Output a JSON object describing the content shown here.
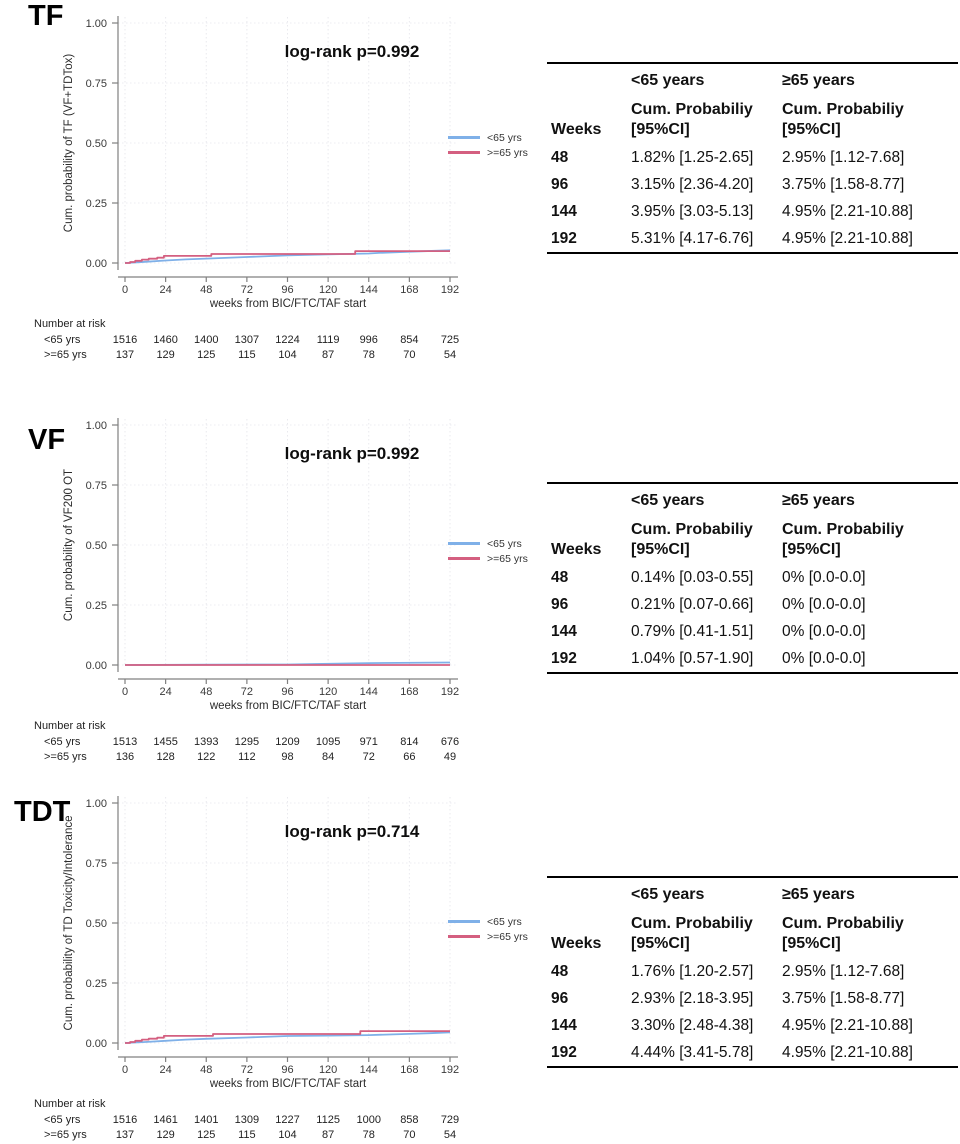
{
  "legend": {
    "items": [
      {
        "label": "<65 yrs",
        "color": "#7fb0e8"
      },
      {
        "label": ">=65 yrs",
        "color": "#d45f80"
      }
    ]
  },
  "chart_data": [
    {
      "type": "line",
      "panel_label": "TF",
      "annotation": "log-rank p=0.992",
      "ylabel": "Cum. probability of TF (VF+TDTox)",
      "xlabel": "weeks from BIC/FTC/TAF start",
      "ylim": [
        0,
        1.0
      ],
      "yticks": [
        0,
        0.25,
        0.5,
        0.75,
        1.0
      ],
      "xticks": [
        0,
        24,
        48,
        72,
        96,
        120,
        144,
        168,
        192
      ],
      "grid": true,
      "legend_position": "right",
      "series": [
        {
          "name": "<65 yrs",
          "color": "#7fb0e8",
          "step": false,
          "x": [
            0,
            6,
            12,
            24,
            36,
            48,
            72,
            96,
            120,
            144,
            150,
            168,
            192
          ],
          "y": [
            0,
            0.002,
            0.005,
            0.0105,
            0.015,
            0.0182,
            0.025,
            0.0315,
            0.036,
            0.0395,
            0.042,
            0.047,
            0.0531
          ]
        },
        {
          "name": ">=65 yrs",
          "color": "#d45f80",
          "step": true,
          "x": [
            0,
            3,
            6,
            10,
            14,
            19,
            23,
            51,
            136,
            192
          ],
          "y": [
            0,
            0.004,
            0.009,
            0.014,
            0.018,
            0.022,
            0.0295,
            0.0375,
            0.0495,
            0.0495
          ]
        }
      ],
      "number_at_risk": {
        "title": "Number at risk",
        "rows": [
          {
            "label": "<65 yrs",
            "values": [
              1516,
              1460,
              1400,
              1307,
              1224,
              1119,
              996,
              854,
              725
            ]
          },
          {
            "label": ">=65 yrs",
            "values": [
              137,
              129,
              125,
              115,
              104,
              87,
              78,
              70,
              54
            ]
          }
        ]
      },
      "table": {
        "group1_header": "<65 years",
        "group2_header": "≥65 years",
        "weeks_label": "Weeks",
        "prob_header_line1": "Cum. Probabiliy",
        "prob_header_line2": "[95%CI]",
        "rows": [
          {
            "week": "48",
            "lt65": "1.82% [1.25-2.65]",
            "ge65": "2.95% [1.12-7.68]"
          },
          {
            "week": "96",
            "lt65": "3.15% [2.36-4.20]",
            "ge65": "3.75% [1.58-8.77]"
          },
          {
            "week": "144",
            "lt65": "3.95% [3.03-5.13]",
            "ge65": "4.95% [2.21-10.88]"
          },
          {
            "week": "192",
            "lt65": "5.31% [4.17-6.76]",
            "ge65": "4.95% [2.21-10.88]"
          }
        ]
      }
    },
    {
      "type": "line",
      "panel_label": "VF",
      "annotation": "log-rank p=0.992",
      "ylabel": "Cum. probability of VF200 OT",
      "xlabel": "weeks from BIC/FTC/TAF start",
      "ylim": [
        0,
        1.0
      ],
      "yticks": [
        0,
        0.25,
        0.5,
        0.75,
        1.0
      ],
      "xticks": [
        0,
        24,
        48,
        72,
        96,
        120,
        144,
        168,
        192
      ],
      "grid": true,
      "legend_position": "right",
      "series": [
        {
          "name": "<65 yrs",
          "color": "#7fb0e8",
          "step": false,
          "x": [
            0,
            48,
            96,
            112,
            144,
            192
          ],
          "y": [
            0,
            0.0014,
            0.0021,
            0.004,
            0.0079,
            0.0104
          ]
        },
        {
          "name": ">=65 yrs",
          "color": "#d45f80",
          "step": false,
          "x": [
            0,
            192
          ],
          "y": [
            0,
            0
          ]
        }
      ],
      "number_at_risk": {
        "title": "Number at risk",
        "rows": [
          {
            "label": "<65 yrs",
            "values": [
              1513,
              1455,
              1393,
              1295,
              1209,
              1095,
              971,
              814,
              676
            ]
          },
          {
            "label": ">=65 yrs",
            "values": [
              136,
              128,
              122,
              112,
              98,
              84,
              72,
              66,
              49
            ]
          }
        ]
      },
      "table": {
        "group1_header": "<65 years",
        "group2_header": "≥65 years",
        "weeks_label": "Weeks",
        "prob_header_line1": "Cum. Probabiliy",
        "prob_header_line2": "[95%CI]",
        "rows": [
          {
            "week": "48",
            "lt65": "0.14% [0.03-0.55]",
            "ge65": "0% [0.0-0.0]"
          },
          {
            "week": "96",
            "lt65": "0.21% [0.07-0.66]",
            "ge65": "0% [0.0-0.0]"
          },
          {
            "week": "144",
            "lt65": "0.79% [0.41-1.51]",
            "ge65": "0% [0.0-0.0]"
          },
          {
            "week": "192",
            "lt65": "1.04% [0.57-1.90]",
            "ge65": "0% [0.0-0.0]"
          }
        ]
      }
    },
    {
      "type": "line",
      "panel_label": "TDT",
      "annotation": "log-rank p=0.714",
      "ylabel": "Cum. probability of TD Toxicity/Intolerance",
      "xlabel": "weeks from BIC/FTC/TAF start",
      "ylim": [
        0,
        1.0
      ],
      "yticks": [
        0,
        0.25,
        0.5,
        0.75,
        1.0
      ],
      "xticks": [
        0,
        24,
        48,
        72,
        96,
        120,
        144,
        168,
        192
      ],
      "grid": true,
      "legend_position": "right",
      "series": [
        {
          "name": "<65 yrs",
          "color": "#7fb0e8",
          "step": false,
          "x": [
            0,
            6,
            12,
            24,
            36,
            48,
            72,
            96,
            120,
            144,
            168,
            180,
            192
          ],
          "y": [
            0,
            0.002,
            0.004,
            0.009,
            0.014,
            0.0176,
            0.023,
            0.0293,
            0.031,
            0.033,
            0.038,
            0.041,
            0.0444
          ]
        },
        {
          "name": ">=65 yrs",
          "color": "#d45f80",
          "step": true,
          "x": [
            0,
            3,
            6,
            10,
            14,
            19,
            23,
            52,
            139,
            192
          ],
          "y": [
            0,
            0.004,
            0.009,
            0.014,
            0.018,
            0.022,
            0.0295,
            0.0375,
            0.0495,
            0.0495
          ]
        }
      ],
      "number_at_risk": {
        "title": "Number at risk",
        "rows": [
          {
            "label": "<65 yrs",
            "values": [
              1516,
              1461,
              1401,
              1309,
              1227,
              1125,
              1000,
              858,
              729
            ]
          },
          {
            "label": ">=65 yrs",
            "values": [
              137,
              129,
              125,
              115,
              104,
              87,
              78,
              70,
              54
            ]
          }
        ]
      },
      "table": {
        "group1_header": "<65 years",
        "group2_header": "≥65 years",
        "weeks_label": "Weeks",
        "prob_header_line1": "Cum. Probabiliy",
        "prob_header_line2": "[95%CI]",
        "rows": [
          {
            "week": "48",
            "lt65": "1.76% [1.20-2.57]",
            "ge65": "2.95% [1.12-7.68]"
          },
          {
            "week": "96",
            "lt65": "2.93% [2.18-3.95]",
            "ge65": "3.75% [1.58-8.77]"
          },
          {
            "week": "144",
            "lt65": "3.30% [2.48-4.38]",
            "ge65": "4.95% [2.21-10.88]"
          },
          {
            "week": "192",
            "lt65": "4.44% [3.41-5.78]",
            "ge65": "4.95% [2.21-10.88]"
          }
        ]
      }
    }
  ]
}
